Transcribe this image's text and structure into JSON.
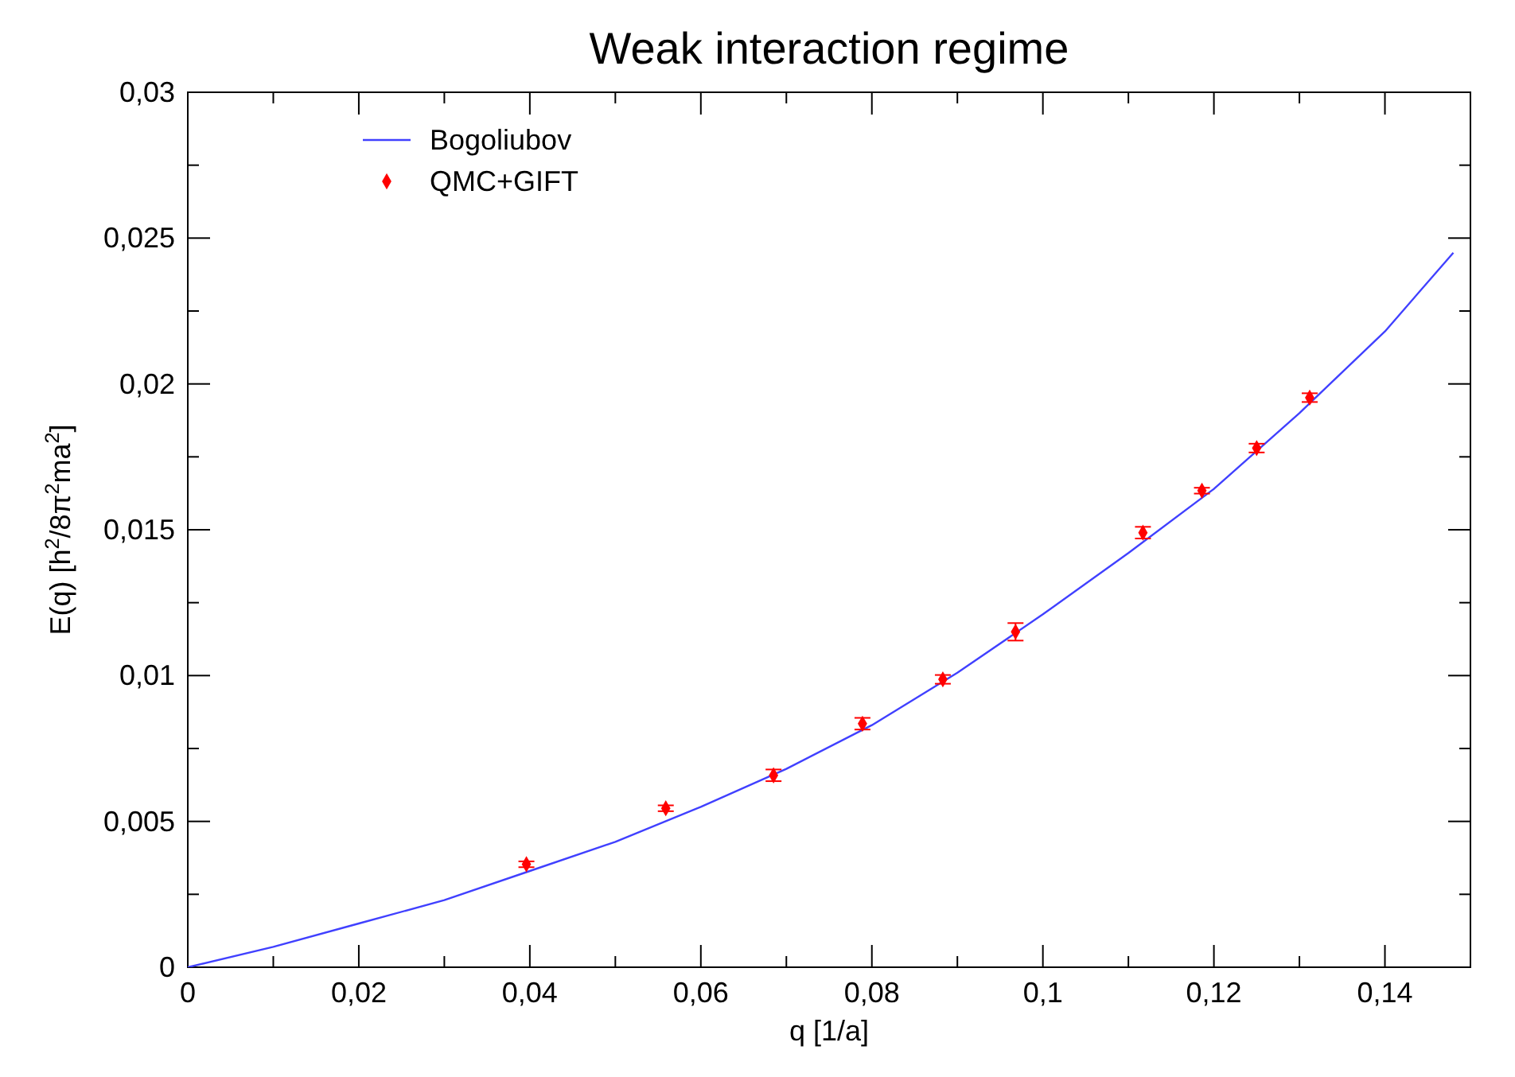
{
  "chart_data": {
    "type": "line",
    "title": "Weak interaction regime",
    "xlabel": "q   [1/a]",
    "ylabel": "E(q)   [h$^{2}$/8π$^{2}$ma$^{2}$]",
    "xlim": [
      0,
      0.15
    ],
    "ylim": [
      0,
      0.03
    ],
    "xticks": [
      {
        "value": 0,
        "label": "0"
      },
      {
        "value": 0.02,
        "label": "0,02"
      },
      {
        "value": 0.04,
        "label": "0,04"
      },
      {
        "value": 0.06,
        "label": "0,06"
      },
      {
        "value": 0.08,
        "label": "0,08"
      },
      {
        "value": 0.1,
        "label": "0,1"
      },
      {
        "value": 0.12,
        "label": "0,12"
      },
      {
        "value": 0.14,
        "label": "0,14"
      }
    ],
    "yticks": [
      {
        "value": 0,
        "label": "0"
      },
      {
        "value": 0.005,
        "label": "0,005"
      },
      {
        "value": 0.01,
        "label": "0,01"
      },
      {
        "value": 0.015,
        "label": "0,015"
      },
      {
        "value": 0.02,
        "label": "0,02"
      },
      {
        "value": 0.025,
        "label": "0,025"
      },
      {
        "value": 0.03,
        "label": "0,03"
      }
    ],
    "grid": false,
    "legend": "top left",
    "series": [
      {
        "name": "Bogoliubov",
        "color": "#4040ff",
        "marker": "none",
        "line_style": "solid",
        "x": [
          0,
          0.01,
          0.02,
          0.03,
          0.04,
          0.05,
          0.06,
          0.07,
          0.08,
          0.09,
          0.1,
          0.11,
          0.12,
          0.13,
          0.14,
          0.148
        ],
        "values": [
          0,
          0.0007,
          0.0015,
          0.0023,
          0.0033,
          0.0043,
          0.0055,
          0.0068,
          0.0083,
          0.0101,
          0.0121,
          0.0142,
          0.0164,
          0.019,
          0.0218,
          0.0245
        ]
      },
      {
        "name": "QMC+GIFT",
        "type": "scatter",
        "color": "#ff0000",
        "marker": "diamond",
        "x": [
          0.0396,
          0.0559,
          0.0685,
          0.0789,
          0.0883,
          0.0968,
          0.1117,
          0.1186,
          0.125,
          0.1312
        ],
        "values": [
          0.00353,
          0.00545,
          0.00658,
          0.00835,
          0.00987,
          0.0115,
          0.0149,
          0.01634,
          0.0178,
          0.01953
        ],
        "errors": [
          0.0001,
          0.0001,
          0.0002,
          0.0002,
          0.00015,
          0.0003,
          0.0002,
          0.0001,
          0.00015,
          0.00015
        ]
      }
    ]
  }
}
